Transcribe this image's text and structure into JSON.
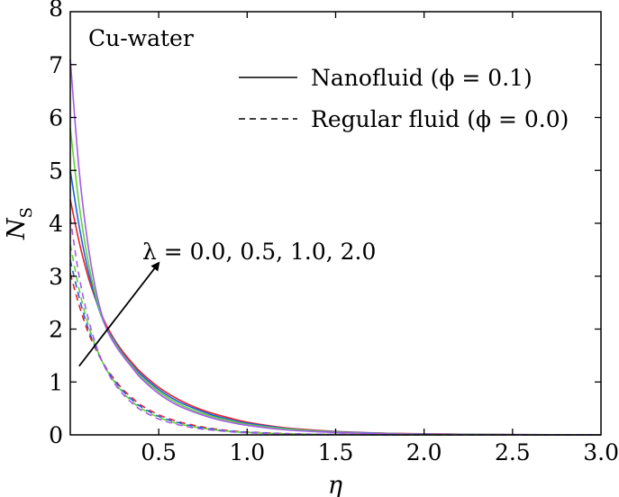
{
  "chart_data": {
    "type": "line",
    "title": "",
    "xlabel": "η",
    "ylabel": "N",
    "ylabel_subscript": "S",
    "xlim": [
      0.0,
      3.0
    ],
    "ylim": [
      0,
      8
    ],
    "xticks": [
      "0.5",
      "1.0",
      "1.5",
      "2.0",
      "2.5",
      "3.0"
    ],
    "yticks": [
      "0",
      "1",
      "2",
      "3",
      "4",
      "5",
      "6",
      "7",
      "8"
    ],
    "grid": false,
    "legend_position": "top-right",
    "legend": [
      {
        "label": "Nanofluid (ϕ = 0.1)",
        "style": "solid"
      },
      {
        "label": "Regular fluid (ϕ = 0.0)",
        "style": "dashed"
      }
    ],
    "annotations": {
      "material": "Cu-water",
      "lambda_label": "λ = 0.0, 0.5, 1.0, 2.0",
      "arrow_from": [
        0.05,
        1.3
      ],
      "arrow_to": [
        0.5,
        3.25
      ]
    },
    "x": [
      0.0,
      0.05,
      0.1,
      0.15,
      0.2,
      0.25,
      0.3,
      0.35,
      0.4,
      0.5,
      0.6,
      0.7,
      0.8,
      0.9,
      1.0,
      1.2,
      1.4,
      1.6,
      1.8,
      2.0,
      2.5,
      3.0
    ],
    "series": [
      {
        "lambda": "0.0",
        "fluid": "nanofluid",
        "color": "#e8202a",
        "style": "solid",
        "values": [
          4.45,
          3.65,
          3.0,
          2.5,
          2.1,
          1.8,
          1.56,
          1.36,
          1.18,
          0.9,
          0.69,
          0.53,
          0.41,
          0.32,
          0.24,
          0.14,
          0.085,
          0.05,
          0.03,
          0.02,
          0.006,
          0.0
        ]
      },
      {
        "lambda": "0.5",
        "fluid": "nanofluid",
        "color": "#1f5fe0",
        "style": "solid",
        "values": [
          5.0,
          3.95,
          3.12,
          2.5,
          2.05,
          1.78,
          1.52,
          1.32,
          1.14,
          0.86,
          0.65,
          0.5,
          0.38,
          0.29,
          0.22,
          0.13,
          0.075,
          0.045,
          0.027,
          0.016,
          0.005,
          0.0
        ]
      },
      {
        "lambda": "1.0",
        "fluid": "nanofluid",
        "color": "#5fd23a",
        "style": "solid",
        "values": [
          5.8,
          4.35,
          3.3,
          2.55,
          2.05,
          1.75,
          1.5,
          1.3,
          1.1,
          0.82,
          0.61,
          0.46,
          0.35,
          0.27,
          0.2,
          0.12,
          0.07,
          0.04,
          0.024,
          0.014,
          0.004,
          0.0
        ]
      },
      {
        "lambda": "2.0",
        "fluid": "nanofluid",
        "color": "#a55be6",
        "style": "solid",
        "values": [
          7.1,
          5.0,
          3.6,
          2.65,
          2.05,
          1.72,
          1.48,
          1.27,
          1.07,
          0.78,
          0.57,
          0.43,
          0.32,
          0.24,
          0.18,
          0.1,
          0.058,
          0.034,
          0.02,
          0.012,
          0.003,
          0.0
        ]
      },
      {
        "lambda": "0.0",
        "fluid": "regular",
        "color": "#e8202a",
        "style": "dashed",
        "values": [
          3.05,
          2.45,
          1.95,
          1.58,
          1.28,
          1.05,
          0.85,
          0.7,
          0.56,
          0.38,
          0.26,
          0.18,
          0.12,
          0.08,
          0.055,
          0.026,
          0.012,
          0.006,
          0.003,
          0.002,
          0.0,
          0.0
        ]
      },
      {
        "lambda": "0.5",
        "fluid": "regular",
        "color": "#1f5fe0",
        "style": "dashed",
        "values": [
          3.3,
          2.6,
          2.02,
          1.6,
          1.27,
          1.02,
          0.82,
          0.66,
          0.53,
          0.35,
          0.24,
          0.16,
          0.11,
          0.07,
          0.05,
          0.023,
          0.011,
          0.005,
          0.003,
          0.001,
          0.0,
          0.0
        ]
      },
      {
        "lambda": "1.0",
        "fluid": "regular",
        "color": "#5fd23a",
        "style": "dashed",
        "values": [
          3.6,
          2.75,
          2.1,
          1.62,
          1.26,
          1.0,
          0.79,
          0.63,
          0.5,
          0.33,
          0.22,
          0.15,
          0.1,
          0.065,
          0.045,
          0.02,
          0.01,
          0.005,
          0.002,
          0.001,
          0.0,
          0.0
        ]
      },
      {
        "lambda": "2.0",
        "fluid": "regular",
        "color": "#a55be6",
        "style": "dashed",
        "values": [
          4.1,
          3.0,
          2.22,
          1.65,
          1.25,
          0.97,
          0.76,
          0.6,
          0.47,
          0.3,
          0.2,
          0.13,
          0.09,
          0.06,
          0.04,
          0.018,
          0.008,
          0.004,
          0.002,
          0.001,
          0.0,
          0.0
        ]
      }
    ]
  }
}
